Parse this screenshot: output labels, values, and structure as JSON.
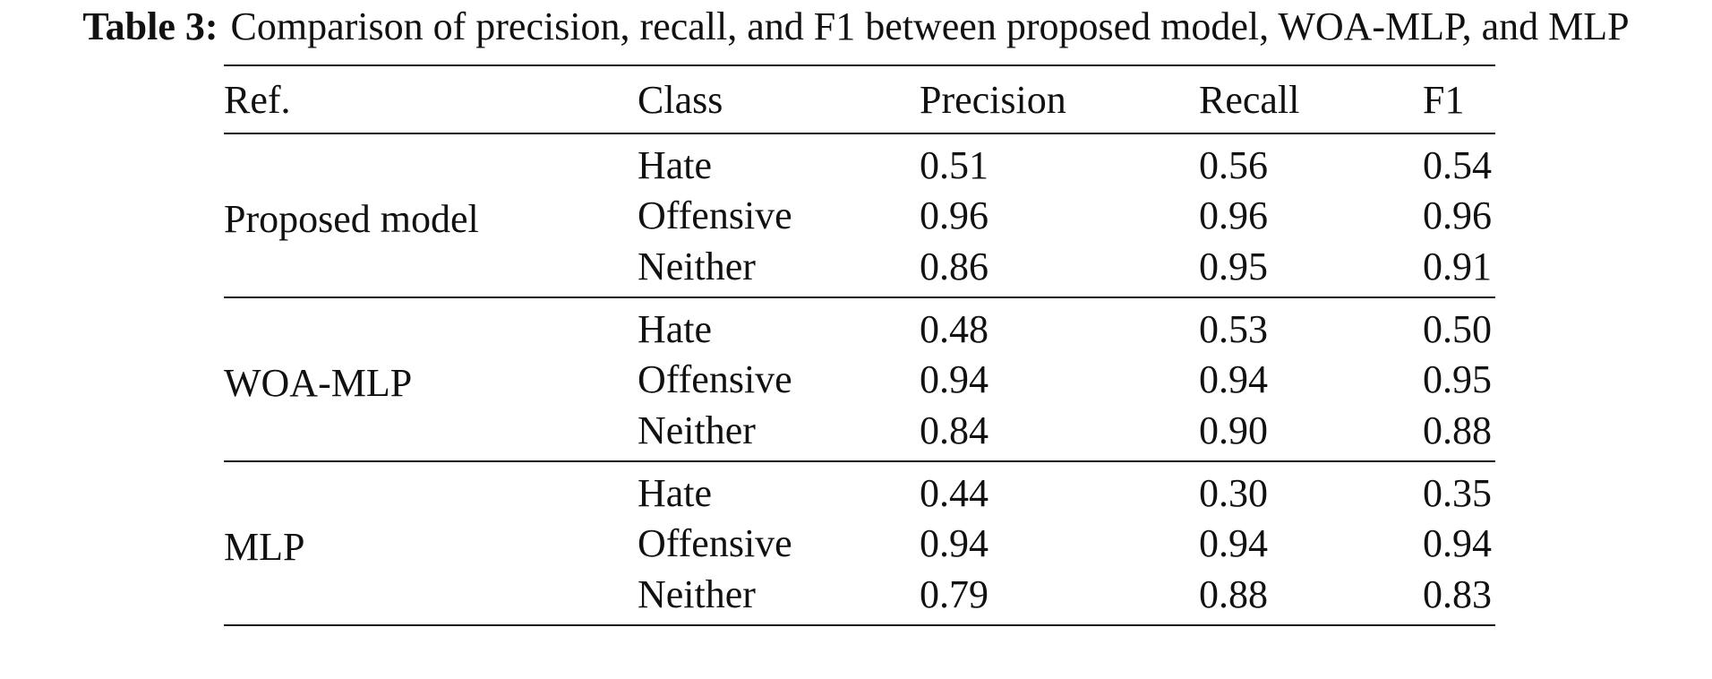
{
  "caption": {
    "label": "Table 3:",
    "text": "Comparison of precision, recall, and F1 between proposed model, WOA-MLP, and MLP"
  },
  "table": {
    "headers": [
      "Ref.",
      "Class",
      "Precision",
      "Recall",
      "F1"
    ],
    "groups": [
      {
        "ref": "Proposed model",
        "rows": [
          {
            "class": "Hate",
            "precision": "0.51",
            "recall": "0.56",
            "f1": "0.54"
          },
          {
            "class": "Offensive",
            "precision": "0.96",
            "recall": "0.96",
            "f1": "0.96"
          },
          {
            "class": "Neither",
            "precision": "0.86",
            "recall": "0.95",
            "f1": "0.91"
          }
        ]
      },
      {
        "ref": "WOA-MLP",
        "rows": [
          {
            "class": "Hate",
            "precision": "0.48",
            "recall": "0.53",
            "f1": "0.50"
          },
          {
            "class": "Offensive",
            "precision": "0.94",
            "recall": "0.94",
            "f1": "0.95"
          },
          {
            "class": "Neither",
            "precision": "0.84",
            "recall": "0.90",
            "f1": "0.88"
          }
        ]
      },
      {
        "ref": "MLP",
        "rows": [
          {
            "class": "Hate",
            "precision": "0.44",
            "recall": "0.30",
            "f1": "0.35"
          },
          {
            "class": "Offensive",
            "precision": "0.94",
            "recall": "0.94",
            "f1": "0.94"
          },
          {
            "class": "Neither",
            "precision": "0.79",
            "recall": "0.88",
            "f1": "0.83"
          }
        ]
      }
    ]
  }
}
